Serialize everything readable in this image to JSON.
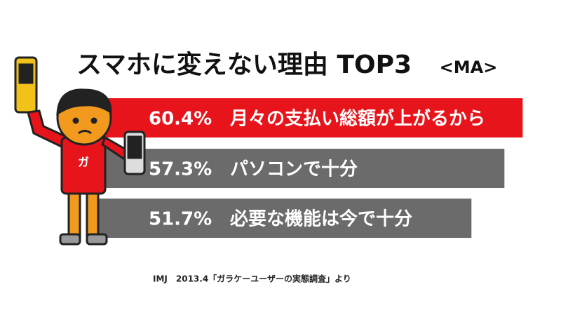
{
  "chart_data": {
    "type": "bar",
    "orientation": "horizontal",
    "title": "スマホに変えない理由 TOP3",
    "subtitle": "<MA>",
    "categories": [
      "月々の支払い総額が上がるから",
      "パソコンで十分",
      "必要な機能は今で十分"
    ],
    "values": [
      60.4,
      57.3,
      51.7
    ],
    "value_labels": [
      "60.4%",
      "57.3%",
      "51.7%"
    ],
    "colors": [
      "#e8141b",
      "#6b6b6b",
      "#6b6b6b"
    ],
    "mascot_label": "ガ",
    "source": "IMJ　2013.4「ガラケーユーザーの実態調査」より"
  }
}
